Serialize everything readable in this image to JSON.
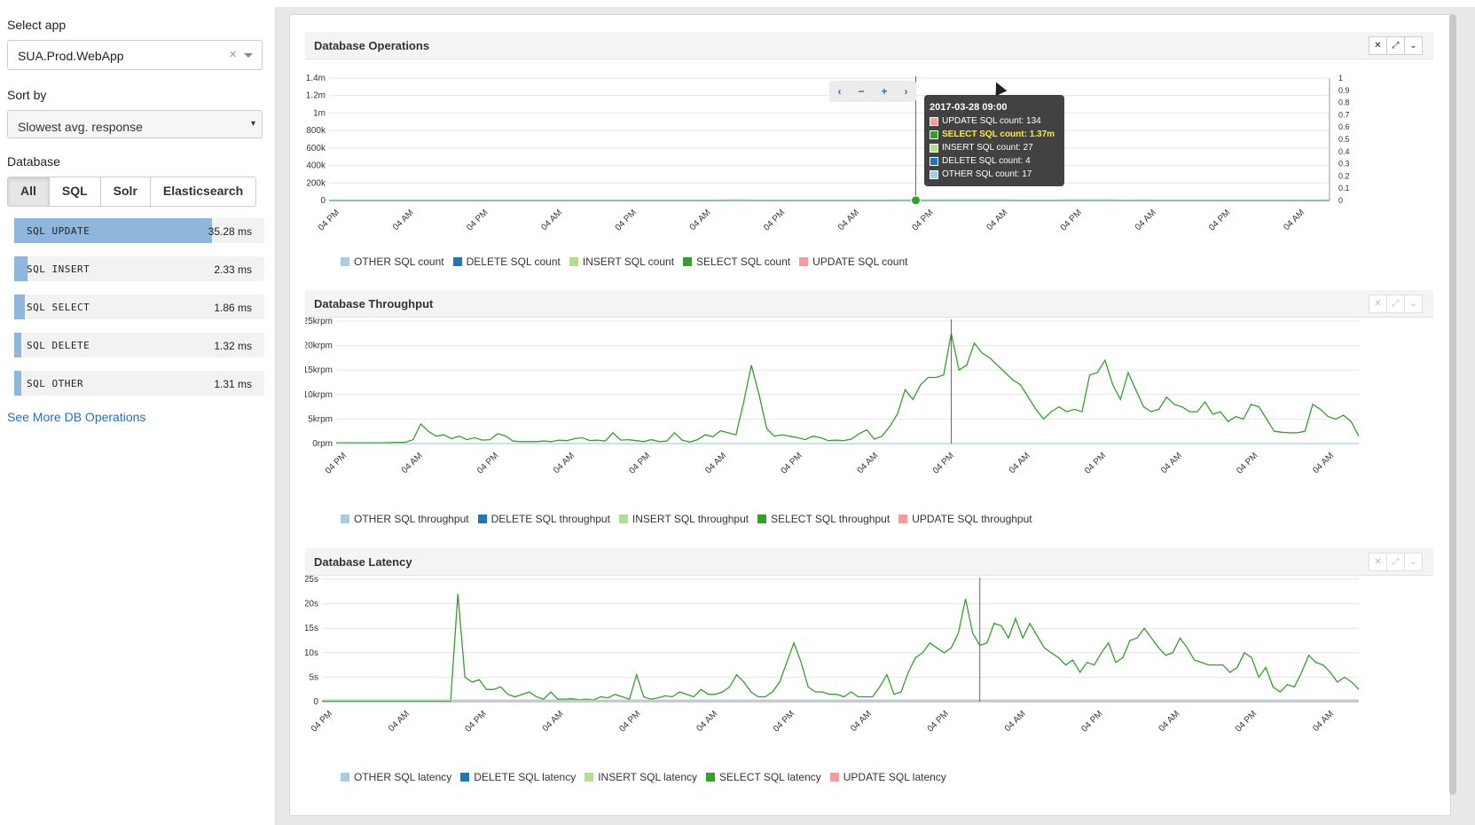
{
  "sidebar": {
    "select_app_label": "Select app",
    "app_value": "SUA.Prod.WebApp",
    "clear_symbol": "×",
    "sort_label": "Sort by",
    "sort_value": "Slowest avg. response",
    "database_label": "Database",
    "db_tabs": [
      "All",
      "SQL",
      "Solr",
      "Elasticsearch"
    ],
    "active_tab": "All",
    "operations": [
      {
        "name": "SQL UPDATE",
        "ms": "35.28 ms",
        "fraction": 1.0
      },
      {
        "name": "SQL INSERT",
        "ms": "2.33 ms",
        "fraction": 0.066
      },
      {
        "name": "SQL SELECT",
        "ms": "1.86 ms",
        "fraction": 0.053
      },
      {
        "name": "SQL DELETE",
        "ms": "1.32 ms",
        "fraction": 0.037
      },
      {
        "name": "SQL OTHER",
        "ms": "1.31 ms",
        "fraction": 0.037
      }
    ],
    "see_more": "See More DB Operations"
  },
  "colors": {
    "other": "#a6cee3",
    "delete": "#1f78b4",
    "insert": "#b2df8a",
    "select": "#33a02c",
    "update": "#fb9a99",
    "bar": "#8fb7de"
  },
  "tooltip": {
    "title": "2017-03-28 09:00",
    "rows": [
      {
        "text": "UPDATE SQL count: 134",
        "color": "#fb9a99"
      },
      {
        "text": "SELECT SQL count: 1.37m",
        "color": "#33a02c",
        "highlight": true
      },
      {
        "text": "INSERT SQL count: 27",
        "color": "#b2df8a"
      },
      {
        "text": "DELETE SQL count: 4",
        "color": "#1f78b4"
      },
      {
        "text": "OTHER SQL count: 17",
        "color": "#a6cee3"
      }
    ]
  },
  "nav_controls": [
    "‹",
    "−",
    "+",
    "›"
  ],
  "panels": [
    {
      "title": "Database Operations",
      "tools": [
        "✕",
        "⤢",
        "⌄"
      ],
      "legend": [
        "OTHER SQL count",
        "DELETE SQL count",
        "INSERT SQL count",
        "SELECT SQL count",
        "UPDATE SQL count"
      ]
    },
    {
      "title": "Database Throughput",
      "tools": [
        "✕",
        "⤢",
        "⌄"
      ],
      "legend": [
        "OTHER SQL throughput",
        "DELETE SQL throughput",
        "INSERT SQL throughput",
        "SELECT SQL throughput",
        "UPDATE SQL throughput"
      ]
    },
    {
      "title": "Database Latency",
      "tools": [
        "✕",
        "⤢",
        "⌄"
      ],
      "legend": [
        "OTHER SQL latency",
        "DELETE SQL latency",
        "INSERT SQL latency",
        "SELECT SQL latency",
        "UPDATE SQL latency"
      ]
    }
  ],
  "chart_data": [
    {
      "type": "line",
      "title": "Database Operations",
      "x_ticks": [
        "04 PM",
        "04 AM",
        "04 PM",
        "04 AM",
        "04 PM",
        "04 AM",
        "04 PM",
        "04 AM",
        "04 PM",
        "04 AM",
        "04 PM",
        "04 AM",
        "04 PM",
        "04 AM"
      ],
      "y_ticks": [
        "0",
        "200k",
        "400k",
        "600k",
        "800k",
        "1m",
        "1.2m",
        "1.4m"
      ],
      "y2_ticks": [
        "0",
        "0.1",
        "0.2",
        "0.3",
        "0.4",
        "0.5",
        "0.6",
        "0.7",
        "0.8",
        "0.9",
        "1"
      ],
      "ylim": [
        0,
        1400000
      ],
      "series": [
        {
          "name": "SELECT SQL count",
          "color": "#33a02c",
          "values": [
            10,
            10,
            10,
            10,
            10,
            10,
            10,
            15,
            20,
            20,
            60,
            230,
            180,
            100,
            130,
            80,
            100,
            60,
            90,
            50,
            60,
            150,
            120,
            40,
            30,
            30,
            30,
            40,
            30,
            50,
            40,
            70,
            80,
            40,
            50,
            40,
            160,
            50,
            60,
            40,
            30,
            60,
            30,
            40,
            150,
            50,
            20,
            60,
            130,
            100,
            180,
            160,
            130,
            600,
            960,
            600,
            200,
            100,
            120,
            100,
            80,
            60,
            100,
            80,
            40,
            50,
            40,
            60,
            140,
            200,
            60,
            100,
            250,
            400,
            480,
            380,
            560,
            900,
            1370,
            1180,
            1070,
            1260,
            1140,
            1100,
            1240,
            1000,
            950,
            800,
            760,
            700,
            550,
            400,
            260,
            400,
            480,
            420,
            460,
            430,
            900,
            880,
            1040,
            700,
            550,
            850,
            650,
            450,
            400,
            420,
            580,
            500,
            460,
            400,
            400,
            500,
            350,
            400,
            260,
            330,
            290,
            480,
            450,
            320,
            150,
            140,
            130,
            130,
            150,
            470,
            420,
            330,
            300,
            350,
            270,
            100
          ]
        },
        {
          "name": "UPDATE SQL count",
          "color": "#fb9a99",
          "values": [
            0
          ]
        },
        {
          "name": "INSERT SQL count",
          "color": "#b2df8a",
          "values": [
            0
          ]
        },
        {
          "name": "DELETE SQL count",
          "color": "#1f78b4",
          "values": [
            0
          ]
        },
        {
          "name": "OTHER SQL count",
          "color": "#a6cee3",
          "values": [
            0
          ]
        }
      ],
      "cursor_x_index": 78
    },
    {
      "type": "line",
      "title": "Database Throughput",
      "x_ticks": [
        "04 PM",
        "04 AM",
        "04 PM",
        "04 AM",
        "04 PM",
        "04 AM",
        "04 PM",
        "04 AM",
        "04 PM",
        "04 AM",
        "04 PM",
        "04 AM",
        "04 PM",
        "04 AM"
      ],
      "y_ticks": [
        "0rpm",
        "5krpm",
        "10krpm",
        "15krpm",
        "20krpm",
        "25krpm"
      ],
      "ylim": [
        0,
        25000
      ],
      "series": [
        {
          "name": "SELECT SQL throughput",
          "color": "#33a02c",
          "values": [
            150,
            150,
            150,
            150,
            150,
            150,
            150,
            200,
            250,
            250,
            800,
            4000,
            2500,
            1500,
            1800,
            1000,
            1500,
            800,
            1200,
            700,
            800,
            2000,
            1600,
            500,
            400,
            400,
            400,
            500,
            400,
            700,
            600,
            1000,
            1200,
            600,
            700,
            500,
            2200,
            700,
            800,
            600,
            400,
            800,
            400,
            500,
            2200,
            700,
            300,
            800,
            1800,
            1400,
            2600,
            2200,
            1800,
            8500,
            16000,
            10000,
            3000,
            1500,
            1800,
            1500,
            1200,
            800,
            1500,
            1200,
            600,
            700,
            600,
            900,
            2000,
            2800,
            900,
            1500,
            3500,
            6000,
            11000,
            9000,
            12000,
            13500,
            13500,
            14000,
            22500,
            15000,
            16000,
            20500,
            18500,
            17500,
            16000,
            14500,
            13000,
            12000,
            9500,
            7000,
            5000,
            6500,
            7500,
            6500,
            7000,
            6500,
            14000,
            14500,
            17000,
            12000,
            9000,
            14500,
            11000,
            7500,
            6500,
            7000,
            9500,
            8000,
            7500,
            6500,
            6500,
            8500,
            6000,
            6500,
            4500,
            5500,
            5000,
            8000,
            7500,
            5000,
            2500,
            2300,
            2200,
            2200,
            2500,
            8000,
            7000,
            5500,
            5000,
            5800,
            4500,
            1500
          ]
        },
        {
          "name": "OTHER SQL throughput",
          "color": "#a6cee3",
          "values": [
            0
          ]
        }
      ],
      "cursor_x_index": 80
    },
    {
      "type": "line",
      "title": "Database Latency",
      "x_ticks": [
        "04 PM",
        "04 AM",
        "04 PM",
        "04 AM",
        "04 PM",
        "04 AM",
        "04 PM",
        "04 AM",
        "04 PM",
        "04 AM",
        "04 PM",
        "04 AM",
        "04 PM",
        "04 AM"
      ],
      "y_ticks": [
        "0",
        "5s",
        "10s",
        "15s",
        "20s",
        "25s"
      ],
      "ylim": [
        0,
        25
      ],
      "series": [
        {
          "name": "SELECT SQL latency",
          "color": "#33a02c",
          "values": [
            0.2,
            0.2,
            0.2,
            0.2,
            0.2,
            0.2,
            0.2,
            0.2,
            0.2,
            0.2,
            0.2,
            0.2,
            0.2,
            0.2,
            0.2,
            0.2,
            0.2,
            0.2,
            0.2,
            22,
            5,
            4,
            4.5,
            2.5,
            2.5,
            3,
            1.5,
            1,
            1.5,
            2,
            1,
            0.5,
            2,
            0.5,
            0.5,
            0.6,
            0.4,
            0.5,
            0.4,
            1,
            0.8,
            1.5,
            1,
            0.5,
            5.5,
            1,
            0.5,
            0.8,
            1.2,
            1,
            2,
            1.5,
            1,
            2.5,
            1.5,
            1.5,
            2,
            3,
            5.5,
            4,
            2,
            1,
            1,
            2,
            4,
            8,
            12,
            8,
            3,
            2,
            2,
            1.5,
            1.5,
            1,
            2,
            1,
            1,
            1,
            3,
            5.5,
            1.5,
            2,
            6,
            9,
            10,
            12,
            11,
            10,
            11,
            14,
            21,
            14,
            11.5,
            12,
            16,
            15.5,
            13,
            17,
            13,
            16,
            13.5,
            11,
            10,
            9,
            7.5,
            8.5,
            6,
            8,
            7.5,
            10,
            12,
            8,
            9,
            12.5,
            13,
            15,
            13,
            11,
            9.5,
            10,
            13,
            11,
            8.5,
            8,
            7.5,
            7.5,
            7.5,
            6,
            7,
            10,
            9,
            5,
            7,
            3,
            2,
            3.5,
            3,
            6,
            9.5,
            8,
            7.5,
            6,
            4,
            5,
            4,
            2.5
          ]
        },
        {
          "name": "OTHER SQL latency",
          "color": "#a6cee3",
          "values": [
            0.3
          ]
        }
      ],
      "cursor_x_index": 92
    }
  ]
}
